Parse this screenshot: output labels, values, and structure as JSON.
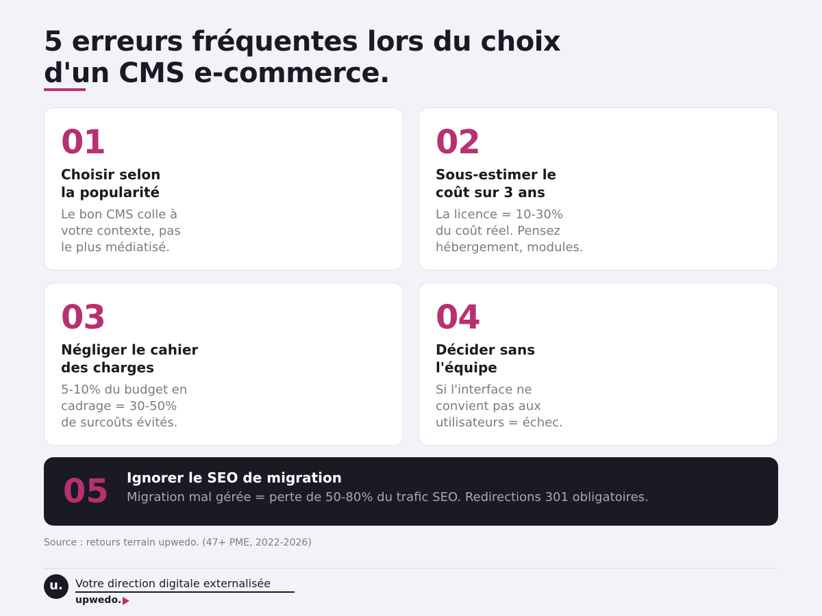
{
  "header": {
    "title_lines": [
      "5 erreurs fréquentes lors du choix",
      "d'un CMS e-commerce."
    ]
  },
  "cards": [
    {
      "number": "01",
      "title_lines": [
        "Choisir selon",
        "la popularité"
      ],
      "body_lines": [
        "Le bon CMS colle à",
        "votre contexte, pas",
        "le plus médiatisé."
      ]
    },
    {
      "number": "02",
      "title_lines": [
        "Sous-estimer le",
        "coût sur 3 ans"
      ],
      "body_lines": [
        "La licence = 10-30%",
        "du coût réel. Pensez",
        "hébergement, modules."
      ]
    },
    {
      "number": "03",
      "title_lines": [
        "Négliger le cahier",
        "des charges"
      ],
      "body_lines": [
        "5-10% du budget en",
        "cadrage = 30-50%",
        "de surcoûts évités."
      ]
    },
    {
      "number": "04",
      "title_lines": [
        "Décider sans",
        "l'équipe"
      ],
      "body_lines": [
        "Si l'interface ne",
        "convient pas aux",
        "utilisateurs = échec."
      ]
    }
  ],
  "highlight": {
    "number": "05",
    "title": "Ignorer le SEO de migration",
    "body": "Migration mal gérée = perte de 50-80% du trafic SEO. Redirections 301 obligatoires."
  },
  "footer": {
    "source": "Source : retours terrain upwedo. (47+ PME, 2022-2026)",
    "logo": "u.",
    "tagline": "Votre direction digitale externalisée",
    "brand": "upwedo."
  }
}
